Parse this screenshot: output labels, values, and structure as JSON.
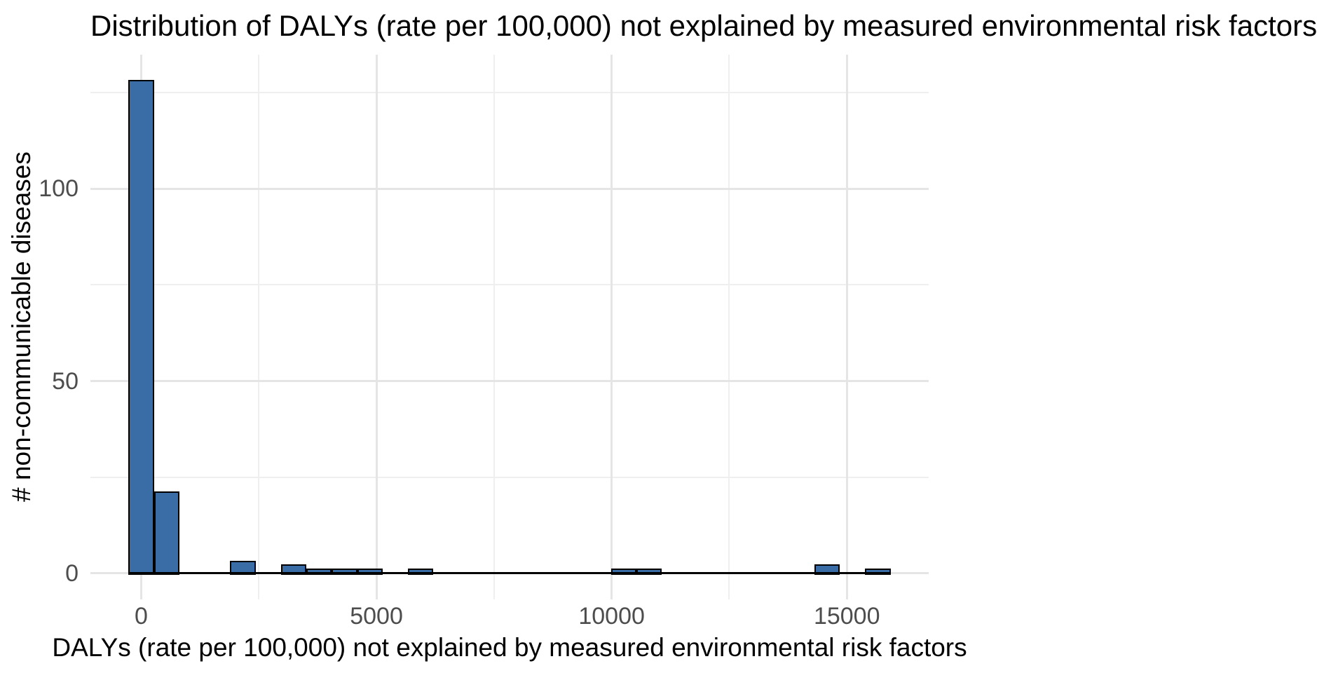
{
  "chart_data": {
    "type": "bar",
    "subtype": "histogram",
    "title": "Distribution of DALYs (rate per 100,000) not explained by measured environmental risk factors",
    "xlabel": "DALYs (rate per 100,000) not explained by measured environmental risk factors",
    "ylabel": "# non-communicable diseases",
    "bin_width": 540,
    "bins": [
      {
        "center": 0,
        "count": 128
      },
      {
        "center": 540,
        "count": 21
      },
      {
        "center": 2160,
        "count": 3
      },
      {
        "center": 3240,
        "count": 2
      },
      {
        "center": 3780,
        "count": 1
      },
      {
        "center": 4320,
        "count": 1
      },
      {
        "center": 4860,
        "count": 1
      },
      {
        "center": 5940,
        "count": 1
      },
      {
        "center": 10260,
        "count": 1
      },
      {
        "center": 10800,
        "count": 1
      },
      {
        "center": 14580,
        "count": 2
      },
      {
        "center": 15660,
        "count": 1
      }
    ],
    "x_axis": {
      "range": [
        -1080,
        16740
      ],
      "ticks": [
        {
          "value": 0,
          "label": "0"
        },
        {
          "value": 5000,
          "label": "5000"
        },
        {
          "value": 10000,
          "label": "10000"
        },
        {
          "value": 15000,
          "label": "15000"
        }
      ],
      "minor_ticks": [
        2500,
        7500,
        12500
      ]
    },
    "y_axis": {
      "range": [
        -6.8,
        134.9
      ],
      "ticks": [
        {
          "value": 0,
          "label": "0"
        },
        {
          "value": 50,
          "label": "50"
        },
        {
          "value": 100,
          "label": "100"
        }
      ],
      "minor_ticks": [
        25,
        75,
        125
      ]
    },
    "grid": true,
    "legend": "none",
    "colors": {
      "bar_fill": "#3a6ca6",
      "bar_stroke": "#000000",
      "baseline": "#000000",
      "grid_major": "#e5e5e5",
      "grid_minor": "#efefef",
      "tick_text": "#4d4d4d",
      "title_text": "#000000"
    }
  }
}
